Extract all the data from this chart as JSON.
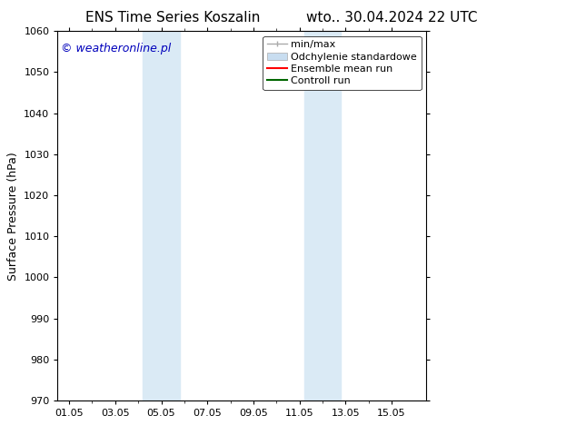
{
  "title_left": "ENS Time Series Koszalin",
  "title_right": "wto.. 30.04.2024 22 UTC",
  "ylabel": "Surface Pressure (hPa)",
  "ylim": [
    970,
    1060
  ],
  "yticks": [
    970,
    980,
    990,
    1000,
    1010,
    1020,
    1030,
    1040,
    1050,
    1060
  ],
  "xtick_labels": [
    "01.05",
    "03.05",
    "05.05",
    "07.05",
    "09.05",
    "11.05",
    "13.05",
    "15.05"
  ],
  "xtick_positions": [
    1,
    3,
    5,
    7,
    9,
    11,
    13,
    15
  ],
  "xlim": [
    0.5,
    16.5
  ],
  "shaded_bands": [
    {
      "x_start": 4.2,
      "x_end": 5.8,
      "color": "#daeaf5"
    },
    {
      "x_start": 11.2,
      "x_end": 12.8,
      "color": "#daeaf5"
    }
  ],
  "watermark_text": "© weatheronline.pl",
  "watermark_color": "#0000bb",
  "legend_items": [
    {
      "label": "min/max",
      "color": "#aaaaaa",
      "type": "minmax"
    },
    {
      "label": "Odchylenie standardowe",
      "color": "#c8ddf0",
      "type": "band"
    },
    {
      "label": "Ensemble mean run",
      "color": "#ff0000",
      "type": "line"
    },
    {
      "label": "Controll run",
      "color": "#006600",
      "type": "line"
    }
  ],
  "bg_color": "#ffffff",
  "plot_bg_color": "#ffffff",
  "title_fontsize": 11,
  "tick_fontsize": 8,
  "ylabel_fontsize": 9,
  "legend_fontsize": 8,
  "watermark_fontsize": 9
}
